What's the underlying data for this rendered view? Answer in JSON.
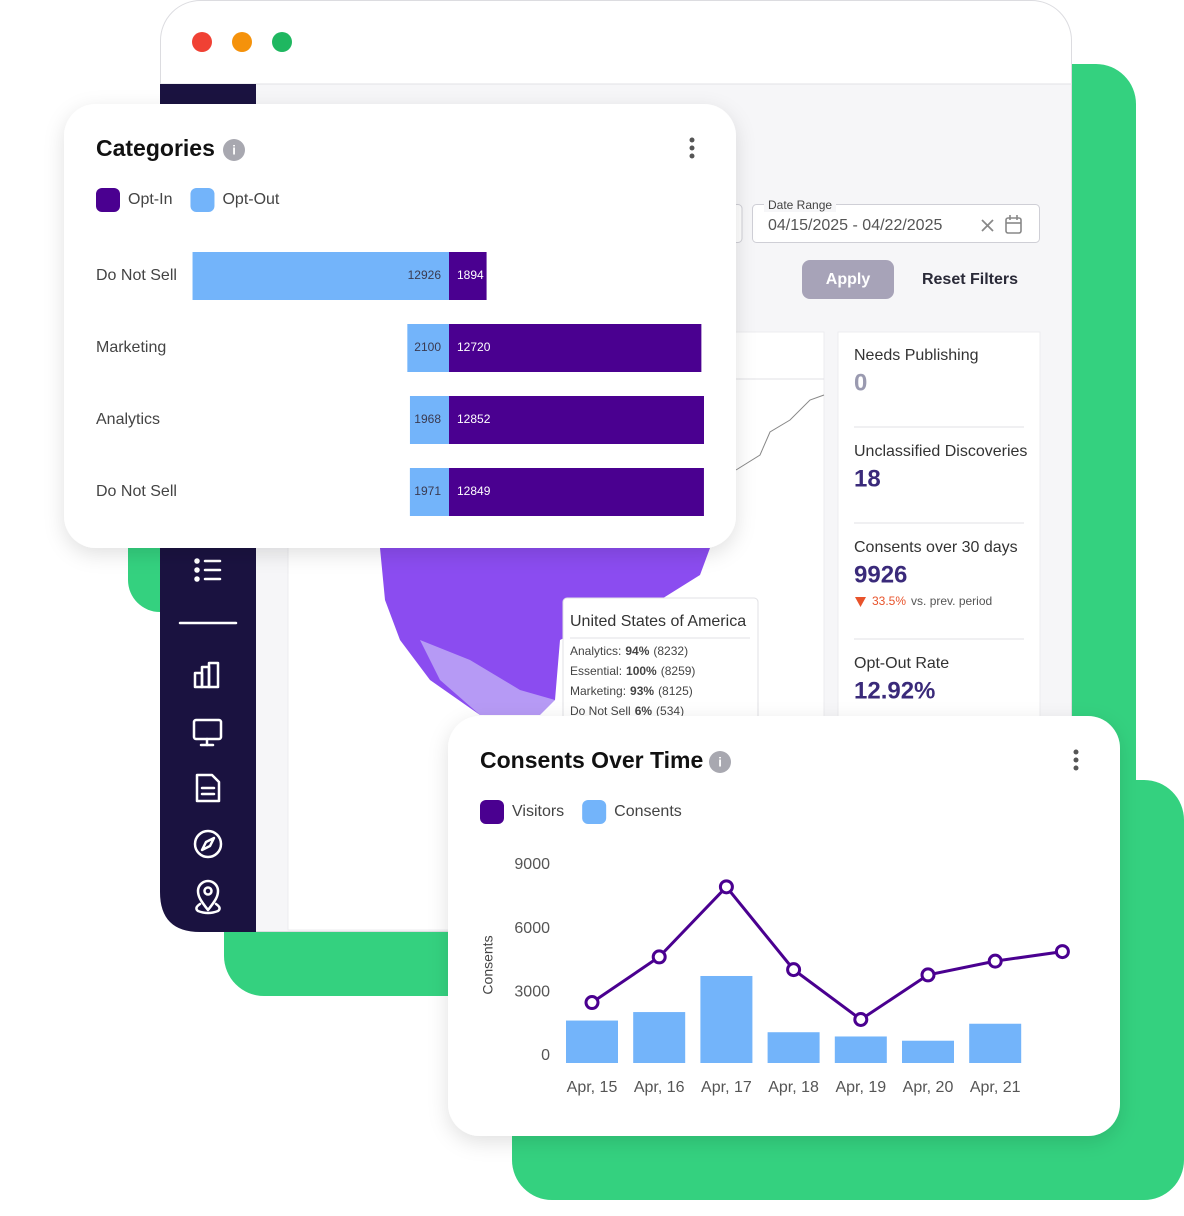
{
  "window": {
    "date_range_label": "Date Range",
    "date_range": "04/15/2025 - 04/22/2025",
    "apply": "Apply",
    "reset": "Reset Filters"
  },
  "stats": [
    {
      "label": "Needs Publishing",
      "value": "0"
    },
    {
      "label": "Unclassified Discoveries",
      "value": "18"
    },
    {
      "label": "Consents over 30 days",
      "value": "9926",
      "change": "33.5%",
      "change_note": "vs. prev. period"
    },
    {
      "label": "Opt-Out Rate",
      "value": "12.92%"
    }
  ],
  "tooltip": {
    "title": "United States of America",
    "rows": [
      {
        "label": "Analytics:",
        "value": "94%",
        "count": "(8232)"
      },
      {
        "label": "Essential:",
        "value": "100%",
        "count": "(8259)"
      },
      {
        "label": "Marketing:",
        "value": "93%",
        "count": "(8125)"
      },
      {
        "label": "Do Not Sell",
        "value": "6%",
        "count": "(534)"
      }
    ]
  },
  "chart_data": [
    {
      "type": "bar",
      "title": "Categories",
      "categories": [
        "Do Not Sell",
        "Marketing",
        "Analytics",
        "Do Not Sell"
      ],
      "series": [
        {
          "name": "Opt-In",
          "color": "#4a0090",
          "values": [
            1894,
            12720,
            12852,
            12849
          ]
        },
        {
          "name": "Opt-Out",
          "color": "#73b4fa",
          "values": [
            12926,
            2100,
            1968,
            1971
          ]
        }
      ]
    },
    {
      "type": "combo",
      "title": "Consents Over Time",
      "ylabel": "Consents",
      "categories": [
        "Apr, 15",
        "Apr, 16",
        "Apr, 17",
        "Apr, 18",
        "Apr, 19",
        "Apr, 20",
        "Apr, 21",
        null
      ],
      "series": [
        {
          "name": "Visitors",
          "color": "#4a0090",
          "type": "line",
          "values": [
            2850,
            5000,
            8300,
            4400,
            2050,
            4150,
            4800,
            5250
          ]
        },
        {
          "name": "Consents",
          "color": "#73b4fa",
          "type": "bar",
          "values": [
            2000,
            2400,
            4100,
            1450,
            1250,
            1050,
            1850,
            null
          ]
        }
      ],
      "ylim": [
        0,
        9000
      ],
      "yticks": [
        0,
        3000,
        6000,
        9000
      ]
    }
  ]
}
